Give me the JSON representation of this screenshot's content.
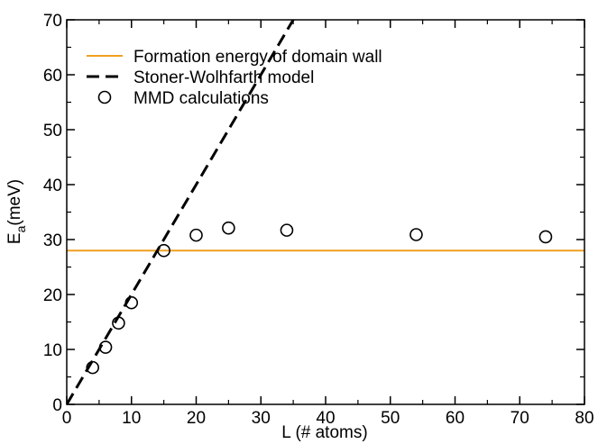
{
  "chart_data": {
    "type": "scatter",
    "xlabel": "L (# atoms)",
    "ylabel": {
      "base": "E",
      "subscript": "a",
      "unit": "(meV)"
    },
    "xlim": [
      0,
      80
    ],
    "xticks": [
      0,
      10,
      20,
      30,
      40,
      50,
      60,
      70,
      80
    ],
    "ylim": [
      0,
      70
    ],
    "yticks": [
      0,
      10,
      20,
      30,
      40,
      50,
      60,
      70
    ],
    "legend": "upper left",
    "series": [
      {
        "name": "Formation energy of domain wall",
        "type": "line",
        "style": "solid",
        "color": "#f0a020",
        "x": [
          0,
          80
        ],
        "values": [
          28,
          28
        ]
      },
      {
        "name": "Stoner-Wolhfarth model",
        "type": "line",
        "style": "dashed",
        "color": "#000000",
        "x": [
          0,
          35
        ],
        "values": [
          0,
          70
        ]
      },
      {
        "name": "MMD calculations",
        "type": "scatter",
        "color": "#000000",
        "x": [
          4,
          6,
          8,
          10,
          15,
          20,
          25,
          34,
          54,
          74
        ],
        "values": [
          6.7,
          10.4,
          14.8,
          18.5,
          28,
          30.8,
          32.1,
          31.7,
          30.9,
          30.5
        ]
      }
    ]
  }
}
